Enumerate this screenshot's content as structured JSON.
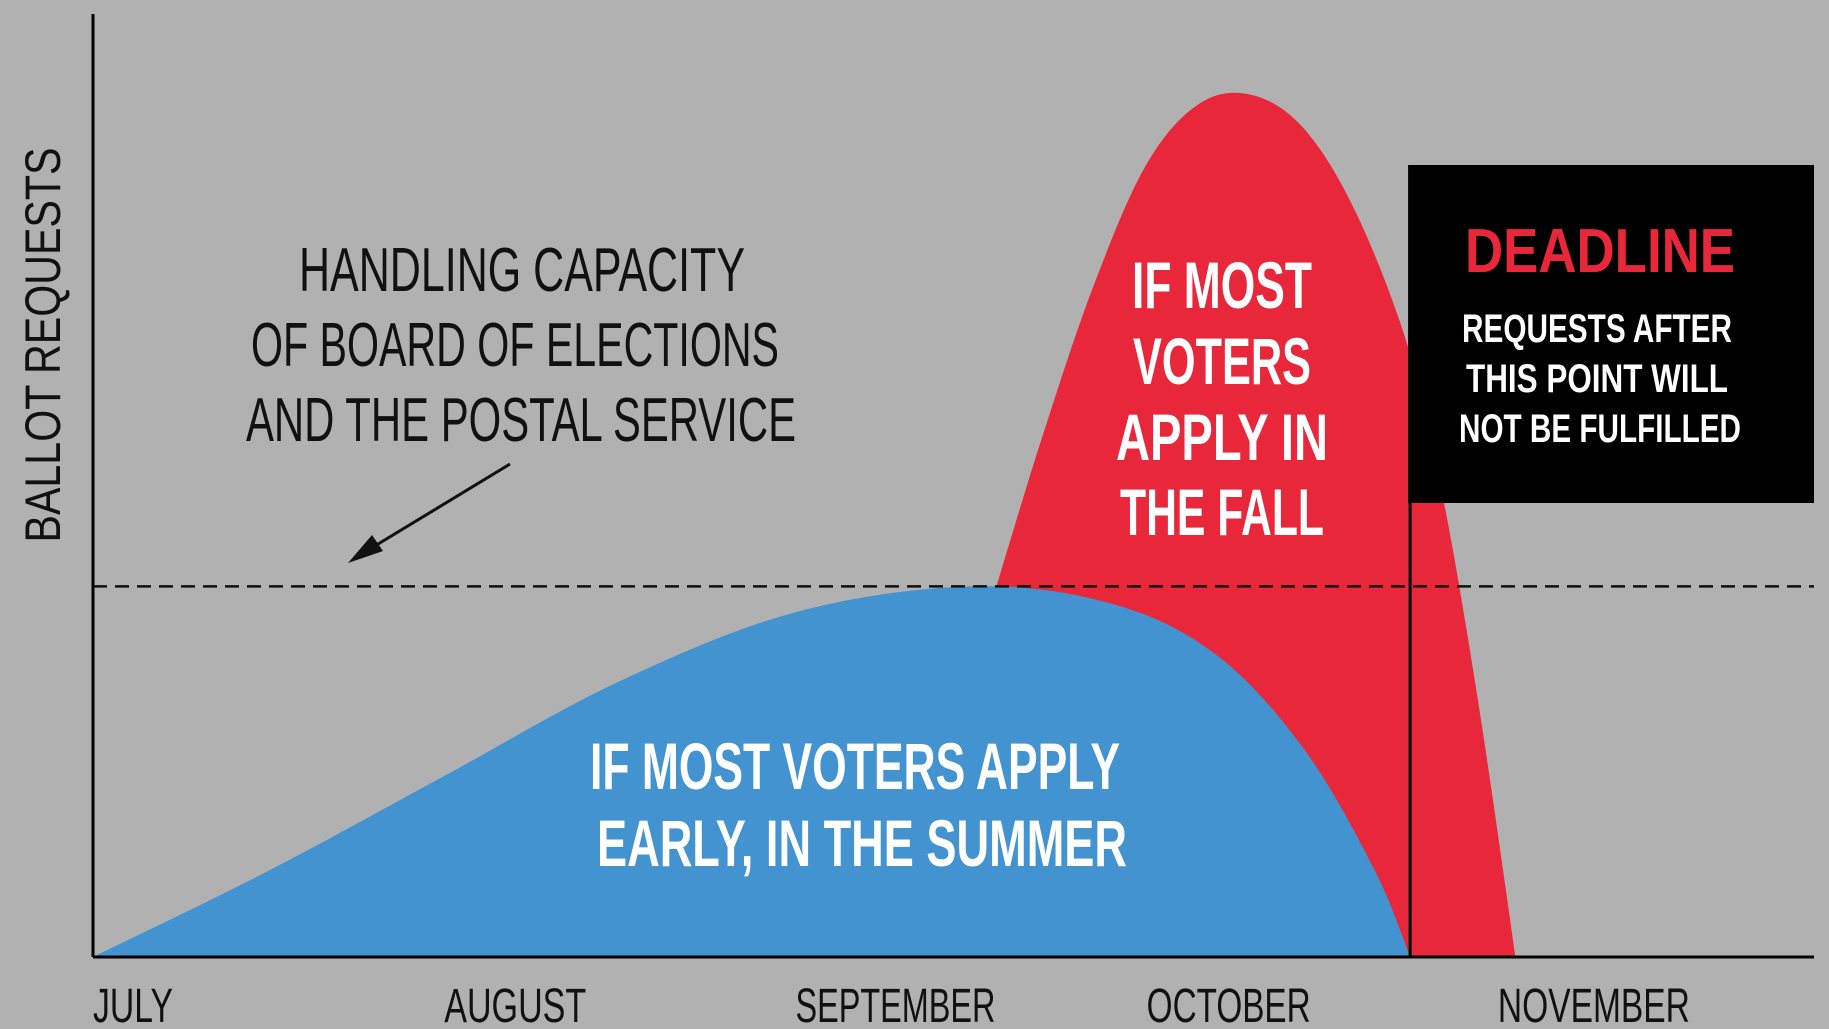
{
  "chart_data": {
    "type": "area",
    "ylabel": "BALLOT REQUESTS",
    "xlabel": "",
    "categories": [
      "JULY",
      "AUGUST",
      "SEPTEMBER",
      "OCTOBER",
      "NOVEMBER"
    ],
    "xlim": [
      0,
      4.9
    ],
    "ylim": [
      0,
      100
    ],
    "grid": false,
    "capacity": {
      "value": 43,
      "label_lines": [
        "HANDLING CAPACITY",
        "OF BOARD OF ELECTIONS",
        "AND THE POSTAL SERVICE"
      ]
    },
    "deadline": {
      "x": 3.75,
      "title": "DEADLINE",
      "lines": [
        "REQUESTS AFTER",
        "THIS POINT WILL",
        "NOT BE FULFILLED"
      ]
    },
    "series": [
      {
        "label_lines": [
          "IF MOST",
          "VOTERS",
          "APPLY IN",
          "THE FALL"
        ],
        "color": "#e8283a",
        "x": [
          2.55,
          2.7,
          2.85,
          3.0,
          3.15,
          3.3,
          3.45,
          3.6,
          3.75,
          3.85,
          3.95,
          4.05
        ],
        "values": [
          40,
          60,
          78,
          92,
          99,
          100,
          96,
          86,
          70,
          52,
          28,
          0
        ]
      },
      {
        "label_lines": [
          "IF MOST VOTERS APPLY",
          "EARLY, IN THE SUMMER"
        ],
        "color": "#4393d0",
        "x": [
          0,
          0.5,
          1.0,
          1.5,
          2.0,
          2.5,
          2.9,
          3.2,
          3.45,
          3.65,
          3.75
        ],
        "values": [
          0,
          10,
          21,
          32,
          40,
          43,
          41,
          35,
          24,
          10,
          0
        ]
      }
    ]
  }
}
